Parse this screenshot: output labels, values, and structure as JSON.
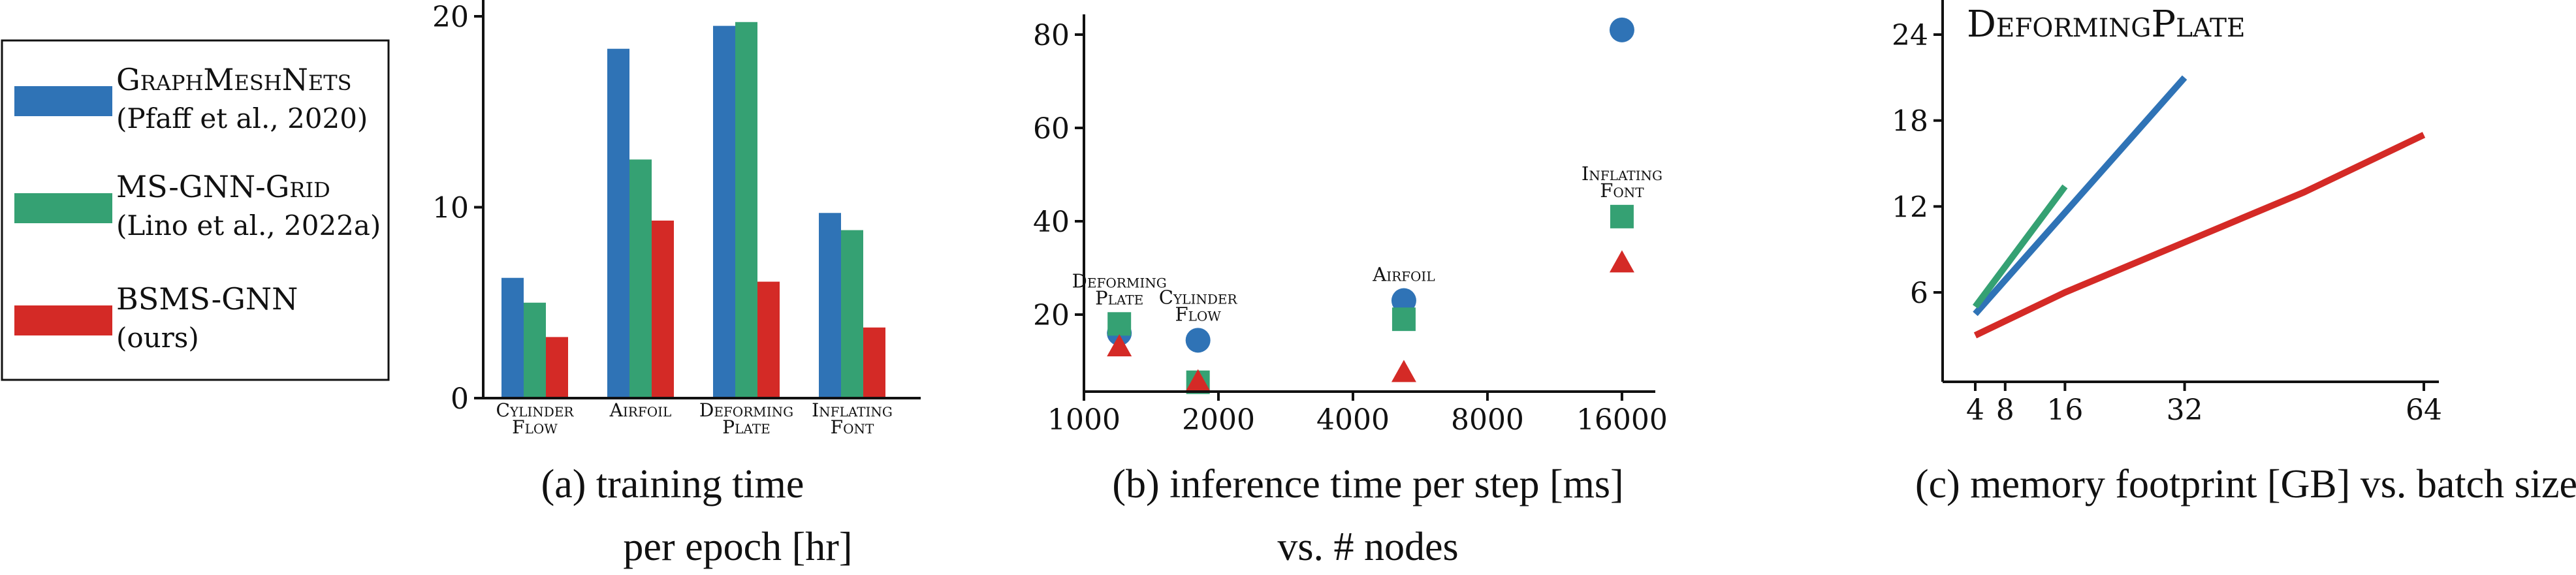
{
  "colors": {
    "blue": "#2f73b6",
    "green": "#35a173",
    "red": "#d42a26"
  },
  "legend": {
    "items": [
      {
        "name": "GraphMeshNets",
        "cite": "(Pfaff et al., 2020)",
        "color": "blue"
      },
      {
        "name": "MS-GNN-Grid",
        "cite": "(Lino et al., 2022a)",
        "color": "green"
      },
      {
        "name": "BSMS-GNN",
        "cite": "(ours)",
        "color": "red"
      }
    ]
  },
  "chart_data": [
    {
      "type": "bar",
      "caption": [
        "(a) training time",
        "per epoch [hr]"
      ],
      "categories": [
        [
          "Cylinder",
          "Flow"
        ],
        [
          "Airfoil"
        ],
        [
          "Deforming",
          "Plate"
        ],
        [
          "Inflating",
          "Font"
        ]
      ],
      "series": [
        {
          "name": "GraphMeshNets",
          "color": "blue",
          "values": [
            6.3,
            18.3,
            19.5,
            9.7
          ]
        },
        {
          "name": "MS-GNN-Grid",
          "color": "green",
          "values": [
            5.0,
            12.5,
            19.7,
            8.8
          ]
        },
        {
          "name": "BSMS-GNN",
          "color": "red",
          "values": [
            3.2,
            9.3,
            6.1,
            3.7
          ]
        }
      ],
      "ylim": [
        0,
        20
      ],
      "yticks": [
        0,
        10,
        20
      ]
    },
    {
      "type": "scatter",
      "caption": [
        "(b) inference time per step [ms]",
        "vs. # nodes"
      ],
      "xscale": "log2",
      "xlim": [
        1000,
        19000
      ],
      "xticks": [
        1000,
        2000,
        4000,
        8000,
        16000
      ],
      "ylim": [
        0,
        85
      ],
      "yticks": [
        20,
        40,
        60,
        80
      ],
      "groups": [
        {
          "label": [
            "Deforming",
            "Plate"
          ],
          "x": 1200,
          "values": [
            16,
            18,
            13
          ]
        },
        {
          "label": [
            "Cylinder",
            "Flow"
          ],
          "x": 1800,
          "values": [
            14.5,
            5.5,
            5.5
          ]
        },
        {
          "label": [
            "Airfoil"
          ],
          "x": 5200,
          "values": [
            23,
            19,
            7.5
          ]
        },
        {
          "label": [
            "Inflating",
            "Font"
          ],
          "x": 16000,
          "values": [
            81,
            41,
            31
          ]
        }
      ],
      "series": [
        {
          "name": "GraphMeshNets",
          "color": "blue",
          "marker": "circle"
        },
        {
          "name": "MS-GNN-Grid",
          "color": "green",
          "marker": "square"
        },
        {
          "name": "BSMS-GNN",
          "color": "red",
          "marker": "triangle"
        }
      ]
    },
    {
      "type": "line",
      "title": "DeformingPlate",
      "caption": [
        "(c) memory footprint [GB] vs. batch size"
      ],
      "xlim": [
        0,
        68
      ],
      "xticks": [
        4,
        8,
        16,
        32,
        64
      ],
      "ylim": [
        0,
        25
      ],
      "yticks": [
        6,
        12,
        18,
        24
      ],
      "series": [
        {
          "name": "GraphMeshNets",
          "color": "blue",
          "x": [
            4,
            32
          ],
          "y": [
            4.5,
            21
          ]
        },
        {
          "name": "MS-GNN-Grid",
          "color": "green",
          "x": [
            4,
            16
          ],
          "y": [
            5,
            13.4
          ]
        },
        {
          "name": "BSMS-GNN",
          "color": "red",
          "x": [
            4,
            8,
            16,
            32,
            48,
            64
          ],
          "y": [
            3,
            4,
            6,
            9.5,
            13,
            17
          ]
        }
      ]
    }
  ]
}
